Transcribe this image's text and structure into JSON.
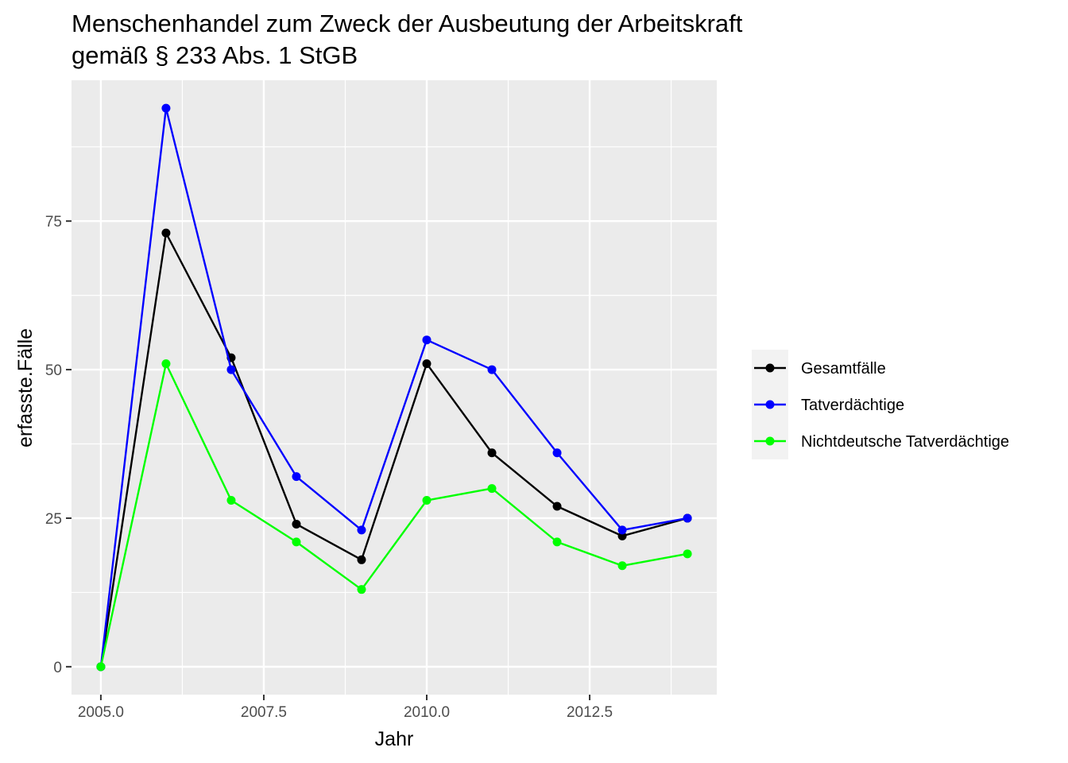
{
  "chart_data": {
    "type": "line",
    "title_line1": "Menschenhandel zum Zweck der Ausbeutung der Arbeitskraft",
    "title_line2": "gemäß § 233 Abs. 1 StGB",
    "xlabel": "Jahr",
    "ylabel": "erfasste.Fälle",
    "x": [
      2005,
      2006,
      2007,
      2008,
      2009,
      2010,
      2011,
      2012,
      2013,
      2014
    ],
    "xlim": [
      2004.55,
      2014.45
    ],
    "ylim": [
      -4.7,
      98.7
    ],
    "x_ticks": [
      2005.0,
      2007.5,
      2010.0,
      2012.5
    ],
    "x_tick_labels": [
      "2005.0",
      "2007.5",
      "2010.0",
      "2012.5"
    ],
    "x_minor": [
      2006.25,
      2008.75,
      2011.25,
      2013.75
    ],
    "y_ticks": [
      0,
      25,
      50,
      75
    ],
    "y_tick_labels": [
      "0",
      "25",
      "50",
      "75"
    ],
    "y_minor": [
      12.5,
      37.5,
      62.5,
      87.5
    ],
    "grid": true,
    "legend_position": "right",
    "series": [
      {
        "name": "Gesamtfälle",
        "color": "#000000",
        "values": [
          0,
          73,
          52,
          24,
          18,
          51,
          36,
          27,
          22,
          25
        ]
      },
      {
        "name": "Tatverdächtige",
        "color": "#0000ff",
        "values": [
          0,
          94,
          50,
          32,
          23,
          55,
          50,
          36,
          23,
          25
        ]
      },
      {
        "name": "Nichtdeutsche Tatverdächtige",
        "color": "#00ff00",
        "values": [
          0,
          51,
          28,
          21,
          13,
          28,
          30,
          21,
          17,
          19
        ]
      }
    ]
  }
}
